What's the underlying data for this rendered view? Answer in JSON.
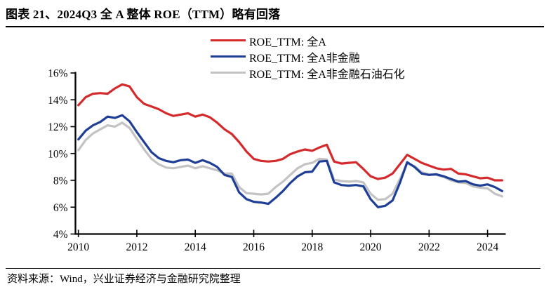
{
  "figure": {
    "title": "图表 21、2024Q3 全 A 整体 ROE（TTM）略有回落",
    "source_note": "资料来源：Wind，兴业证券经济与金融研究院整理"
  },
  "colors": {
    "red": "#d52a2b",
    "navy": "#1f3e96",
    "gray": "#c3c3c5",
    "axis": "#000000"
  },
  "chart_data": {
    "type": "line",
    "title": "",
    "xlabel": "",
    "ylabel": "",
    "grid": false,
    "legend_position": "top-center",
    "xlim": [
      2009.9,
      2024.55
    ],
    "ylim": [
      4,
      16
    ],
    "x_ticks": [
      2010,
      2012,
      2014,
      2016,
      2018,
      2020,
      2022,
      2024
    ],
    "x_tick_labels": [
      "2010",
      "2012",
      "2014",
      "2016",
      "2018",
      "2020",
      "2022",
      "2024"
    ],
    "y_ticks": [
      4,
      6,
      8,
      10,
      12,
      14,
      16
    ],
    "y_tick_labels": [
      "4%",
      "6%",
      "8%",
      "10%",
      "12%",
      "14%",
      "16%"
    ],
    "x": [
      2010.0,
      2010.25,
      2010.5,
      2010.75,
      2011.0,
      2011.25,
      2011.5,
      2011.75,
      2012.0,
      2012.25,
      2012.5,
      2012.75,
      2013.0,
      2013.25,
      2013.5,
      2013.75,
      2014.0,
      2014.25,
      2014.5,
      2014.75,
      2015.0,
      2015.25,
      2015.5,
      2015.75,
      2016.0,
      2016.25,
      2016.5,
      2016.75,
      2017.0,
      2017.25,
      2017.5,
      2017.75,
      2018.0,
      2018.25,
      2018.5,
      2018.75,
      2019.0,
      2019.25,
      2019.5,
      2019.75,
      2020.0,
      2020.25,
      2020.5,
      2020.75,
      2021.0,
      2021.25,
      2021.5,
      2021.75,
      2022.0,
      2022.25,
      2022.5,
      2022.75,
      2023.0,
      2023.25,
      2023.5,
      2023.75,
      2024.0,
      2024.25,
      2024.5
    ],
    "series": [
      {
        "name": "ROE_TTM: 全A",
        "key": "all-a",
        "color": "#d52a2b",
        "values": [
          13.6,
          14.2,
          14.45,
          14.5,
          14.45,
          14.85,
          15.15,
          15.0,
          14.2,
          13.7,
          13.5,
          13.3,
          13.0,
          12.8,
          12.9,
          13.0,
          12.75,
          12.9,
          12.7,
          12.3,
          11.8,
          11.45,
          10.85,
          10.15,
          9.6,
          9.45,
          9.4,
          9.45,
          9.6,
          9.95,
          10.15,
          10.3,
          10.2,
          10.45,
          10.65,
          9.4,
          9.25,
          9.3,
          9.35,
          8.85,
          8.3,
          8.1,
          8.2,
          8.5,
          9.2,
          9.9,
          9.6,
          9.3,
          9.1,
          8.9,
          8.8,
          8.85,
          8.5,
          8.45,
          8.3,
          8.15,
          8.2,
          8.0,
          8.0
        ]
      },
      {
        "name": "ROE_TTM: 全A非金融",
        "key": "all-a-ex-financials",
        "color": "#1f3e96",
        "values": [
          11.05,
          11.7,
          12.1,
          12.35,
          12.75,
          12.65,
          12.85,
          12.4,
          11.6,
          10.85,
          10.1,
          9.65,
          9.45,
          9.35,
          9.5,
          9.55,
          9.3,
          9.5,
          9.3,
          9.0,
          8.4,
          8.25,
          7.1,
          6.6,
          6.4,
          6.35,
          6.25,
          6.7,
          7.2,
          7.8,
          8.3,
          8.6,
          8.65,
          9.4,
          9.45,
          7.85,
          7.65,
          7.6,
          7.65,
          7.55,
          6.6,
          6.0,
          6.1,
          6.5,
          7.8,
          9.35,
          9.0,
          8.5,
          8.4,
          8.45,
          8.3,
          8.1,
          7.9,
          7.95,
          7.7,
          7.6,
          7.7,
          7.5,
          7.2
        ]
      },
      {
        "name": "ROE_TTM: 全A非金融石油石化",
        "key": "all-a-ex-financials-petrochem",
        "color": "#c3c3c5",
        "values": [
          10.25,
          11.0,
          11.5,
          11.8,
          12.1,
          12.0,
          12.3,
          11.9,
          11.1,
          10.3,
          9.6,
          9.2,
          8.95,
          8.9,
          9.0,
          9.1,
          8.9,
          9.05,
          8.9,
          8.75,
          8.5,
          8.5,
          7.5,
          7.05,
          7.0,
          6.95,
          7.0,
          7.5,
          7.9,
          8.4,
          8.9,
          9.2,
          9.3,
          9.6,
          9.55,
          8.05,
          7.95,
          7.9,
          7.95,
          7.85,
          7.0,
          6.55,
          6.6,
          7.0,
          8.1,
          9.25,
          9.05,
          8.6,
          8.45,
          8.4,
          8.25,
          8.0,
          7.85,
          7.8,
          7.55,
          7.45,
          7.4,
          7.0,
          6.8
        ]
      }
    ]
  }
}
